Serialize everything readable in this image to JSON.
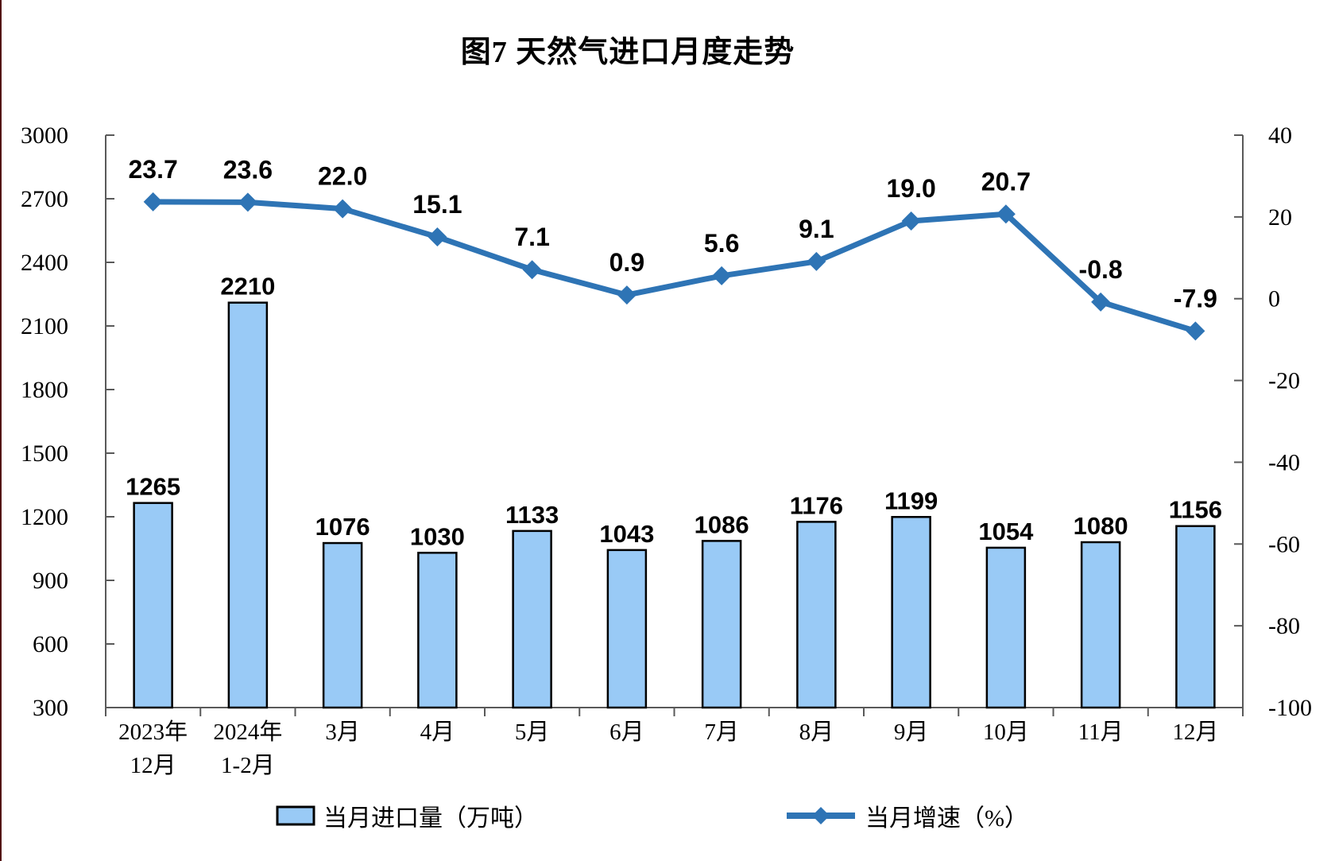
{
  "page": {
    "title": "图7 天然气进口月度走势"
  },
  "colors": {
    "bar_fill": "#99CAF6",
    "bar_stroke": "#000000",
    "line_color": "#2E74B5",
    "axis_color": "#595959",
    "text_color": "#000000",
    "page_edge_line": "#521212"
  },
  "chart_data": {
    "type": "bar",
    "combo": "bar+line",
    "title": "图7 天然气进口月度走势",
    "categories": [
      "2023年12月",
      "2024年1-2月",
      "3月",
      "4月",
      "5月",
      "6月",
      "7月",
      "8月",
      "9月",
      "10月",
      "11月",
      "12月"
    ],
    "category_display_lines": [
      [
        "2023年",
        "12月"
      ],
      [
        "2024年",
        "1-2月"
      ],
      [
        "3月"
      ],
      [
        "4月"
      ],
      [
        "5月"
      ],
      [
        "6月"
      ],
      [
        "7月"
      ],
      [
        "8月"
      ],
      [
        "9月"
      ],
      [
        "10月"
      ],
      [
        "11月"
      ],
      [
        "12月"
      ]
    ],
    "series": [
      {
        "name": "当月进口量（万吨）",
        "type": "bar",
        "axis": "left",
        "values": [
          1265,
          2210,
          1076,
          1030,
          1133,
          1043,
          1086,
          1176,
          1199,
          1054,
          1080,
          1156
        ],
        "labels": [
          "1265",
          "2210",
          "1076",
          "1030",
          "1133",
          "1043",
          "1086",
          "1176",
          "1199",
          "1054",
          "1080",
          "1156"
        ]
      },
      {
        "name": "当月增速（%）",
        "type": "line",
        "axis": "right",
        "marker": "diamond",
        "values": [
          23.7,
          23.6,
          22.0,
          15.1,
          7.1,
          0.9,
          5.6,
          9.1,
          19.0,
          20.7,
          -0.8,
          -7.9
        ],
        "labels": [
          "23.7",
          "23.6",
          "22.0",
          "15.1",
          "7.1",
          "0.9",
          "5.6",
          "9.1",
          "19.0",
          "20.7",
          "-0.8",
          "-7.9"
        ]
      }
    ],
    "left_axis": {
      "min": 300,
      "max": 3000,
      "step": 300,
      "ticks": [
        300,
        600,
        900,
        1200,
        1500,
        1800,
        2100,
        2400,
        2700,
        3000
      ]
    },
    "right_axis": {
      "min": -100,
      "max": 40,
      "step": 20,
      "ticks": [
        -100,
        -80,
        -60,
        -40,
        -20,
        0,
        20,
        40
      ]
    },
    "legend_position": "bottom",
    "grid": "off"
  },
  "legend": {
    "bar_label": "当月进口量（万吨）",
    "line_label": "当月增速（%）"
  }
}
